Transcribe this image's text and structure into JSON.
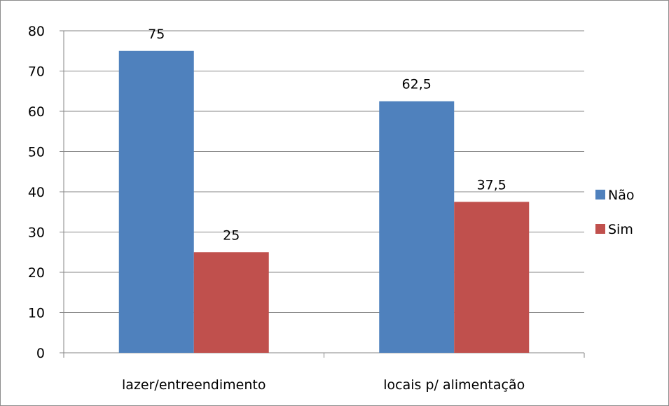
{
  "chart_data": {
    "type": "bar",
    "categories": [
      "lazer/entreendimento",
      "locais p/ alimentação"
    ],
    "series": [
      {
        "name": "Não",
        "values": [
          75,
          62.5
        ],
        "value_labels": [
          "75",
          "62,5"
        ],
        "color": "#4f81bd"
      },
      {
        "name": "Sim",
        "values": [
          25,
          37.5
        ],
        "value_labels": [
          "25",
          "37,5"
        ],
        "color": "#c0504d"
      }
    ],
    "title": "",
    "xlabel": "",
    "ylabel": "",
    "ylim": [
      0,
      80
    ],
    "yticks": [
      0,
      10,
      20,
      30,
      40,
      50,
      60,
      70,
      80
    ],
    "grid": true,
    "legend": "right"
  }
}
